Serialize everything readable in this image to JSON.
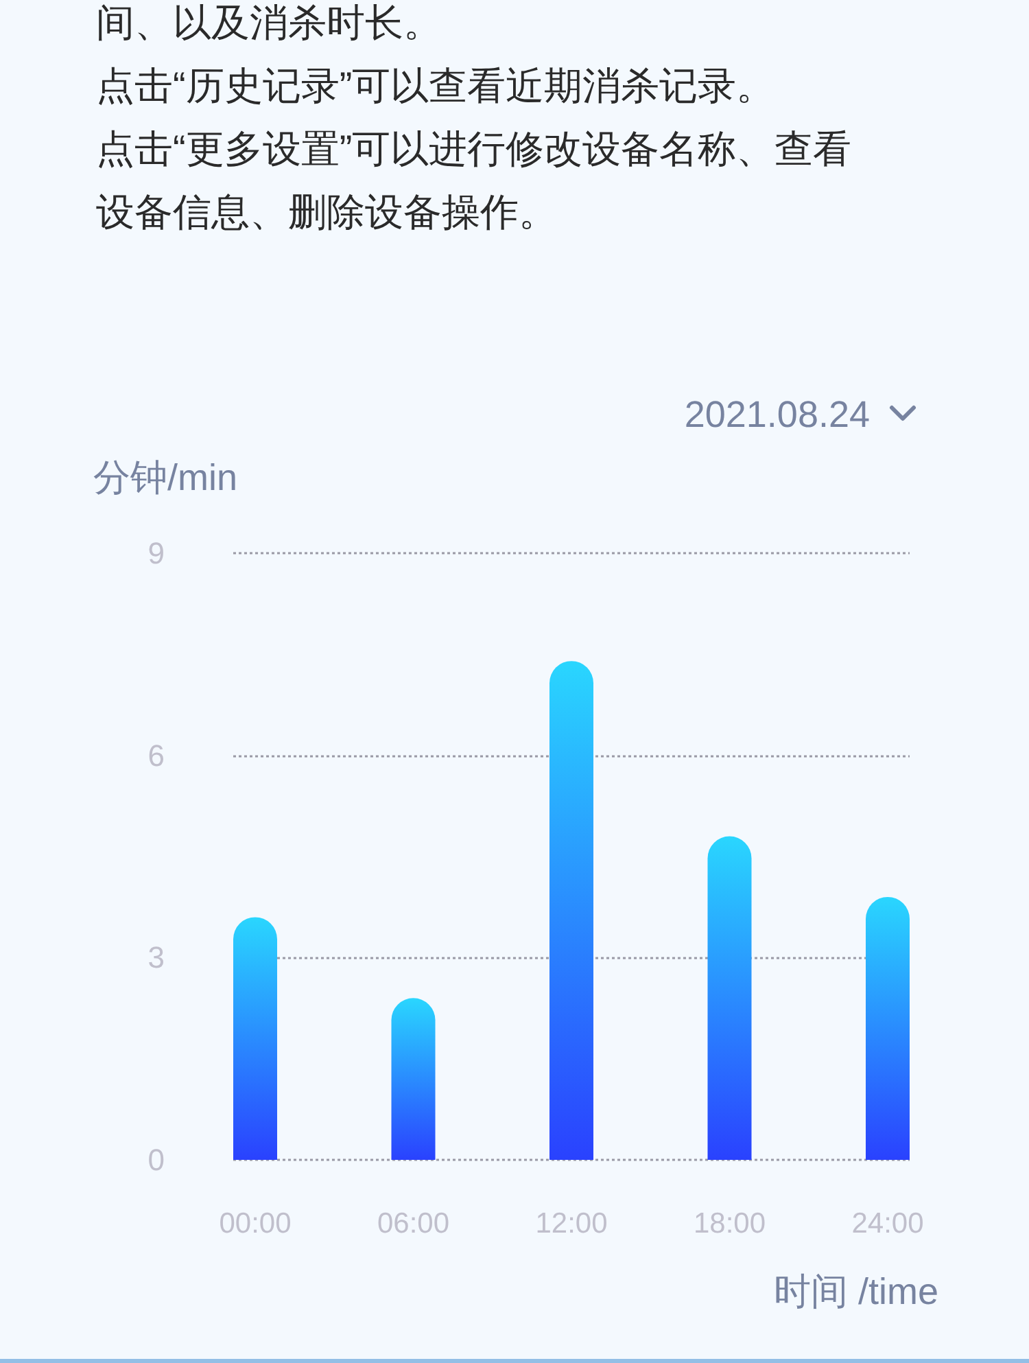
{
  "chart_data": {
    "type": "bar",
    "subtitle": "2021.08.24",
    "annotations": [
      "间、以及消杀时长。",
      "点击“历史记录”可以查看近期消杀记录。",
      "点击“更多设置”可以进行修改设备名称、查看设备信息、删除设备操作。"
    ],
    "xlabel": "时间 /time",
    "ylabel": "分钟/min",
    "categories": [
      "00:00",
      "06:00",
      "12:00",
      "18:00",
      "24:00"
    ],
    "values": [
      3.6,
      2.4,
      7.4,
      4.8,
      3.9
    ],
    "color": "#2a8cfe",
    "ylim": [
      0,
      9
    ],
    "yticks": [
      0,
      3,
      6,
      9
    ],
    "grid": "y"
  }
}
